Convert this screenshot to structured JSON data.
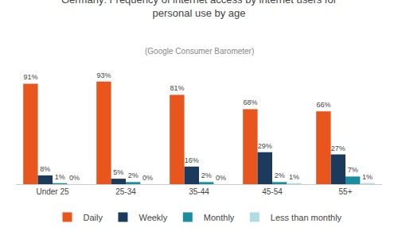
{
  "chart_data": {
    "type": "bar",
    "title": "Germany: Frequency of internet access by internet users for\npersonal use by age",
    "subtitle": "(Google Consumer Barometer)",
    "categories": [
      "Under 25",
      "25-34",
      "35-44",
      "45-54",
      "55+"
    ],
    "series": [
      {
        "name": "Daily",
        "color": "#E8561E",
        "values": [
          91,
          93,
          81,
          68,
          66
        ],
        "value_labels": [
          "91%",
          "93%",
          "81%",
          "68%",
          "66%"
        ]
      },
      {
        "name": "Weekly",
        "color": "#1B3A5C",
        "values": [
          8,
          5,
          16,
          29,
          27
        ],
        "value_labels": [
          "8%",
          "5%",
          "16%",
          "29%",
          "27%"
        ]
      },
      {
        "name": "Monthly",
        "color": "#1A8EA0",
        "values": [
          1,
          2,
          2,
          2,
          7
        ],
        "value_labels": [
          "1%",
          "2%",
          "2%",
          "2%",
          "7%"
        ]
      },
      {
        "name": "Less than monthly",
        "color": "#B0DDE4",
        "values": [
          0,
          0,
          0,
          1,
          1
        ],
        "value_labels": [
          "0%",
          "0%",
          "0%",
          "1%",
          "1%"
        ]
      }
    ],
    "ylim": [
      0,
      105
    ],
    "grid": false,
    "legend": "bottom",
    "data_labels": true,
    "tick_labels": "x"
  }
}
